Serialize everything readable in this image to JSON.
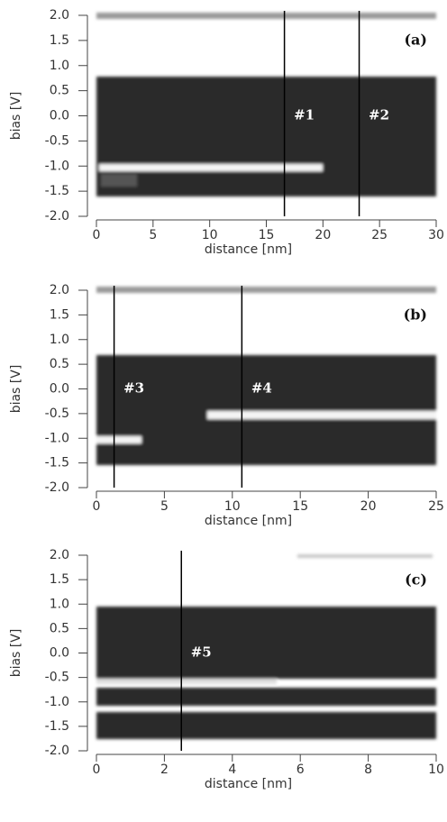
{
  "chart_data": [
    {
      "type": "heatmap",
      "xlabel": "distance [nm]",
      "ylabel": "bias [V]",
      "panel_label": "(a)",
      "xlim": [
        0,
        30
      ],
      "xticks": [
        0,
        5,
        10,
        15,
        20,
        25,
        30
      ],
      "ylim": [
        -2,
        2
      ],
      "yticks": [
        {
          "value": 2,
          "label": "2.0"
        },
        1.5,
        {
          "value": 1,
          "label": "1.0"
        },
        0.5,
        {
          "value": 0,
          "label": "0.0"
        },
        -0.5,
        {
          "value": -1,
          "label": "-1.0"
        },
        -1.5,
        {
          "value": -2,
          "label": "-2.0"
        }
      ],
      "markers": [
        {
          "label": "#1",
          "x": 16.6
        },
        {
          "label": "#2",
          "x": 23.2
        }
      ]
    },
    {
      "type": "heatmap",
      "xlabel": "distance [nm]",
      "ylabel": "bias [V]",
      "panel_label": "(b)",
      "xlim": [
        0,
        25
      ],
      "xticks": [
        0,
        5,
        10,
        15,
        20,
        25
      ],
      "ylim": [
        -2,
        2
      ],
      "yticks": [
        {
          "value": 2,
          "label": "2.0"
        },
        1.5,
        {
          "value": 1,
          "label": "1.0"
        },
        0.5,
        {
          "value": 0,
          "label": "0.0"
        },
        -0.5,
        {
          "value": -1,
          "label": "-1.0"
        },
        -1.5,
        {
          "value": -2,
          "label": "-2.0"
        }
      ],
      "markers": [
        {
          "label": "#3",
          "x": 1.3
        },
        {
          "label": "#4",
          "x": 10.7
        }
      ]
    },
    {
      "type": "heatmap",
      "xlabel": "distance [nm]",
      "ylabel": "bias [V]",
      "panel_label": "(c)",
      "xlim": [
        0,
        10
      ],
      "xticks": [
        0,
        2,
        4,
        6,
        8,
        10
      ],
      "ylim": [
        -2,
        2
      ],
      "yticks": [
        {
          "value": 2,
          "label": "2.0"
        },
        1.5,
        {
          "value": 1,
          "label": "1.0"
        },
        0.5,
        {
          "value": 0,
          "label": "0.0"
        },
        -0.5,
        {
          "value": -1,
          "label": "-1.0"
        },
        -1.5,
        {
          "value": -2,
          "label": "-2.0"
        }
      ],
      "markers": [
        {
          "label": "#5",
          "x": 2.5
        }
      ]
    }
  ]
}
